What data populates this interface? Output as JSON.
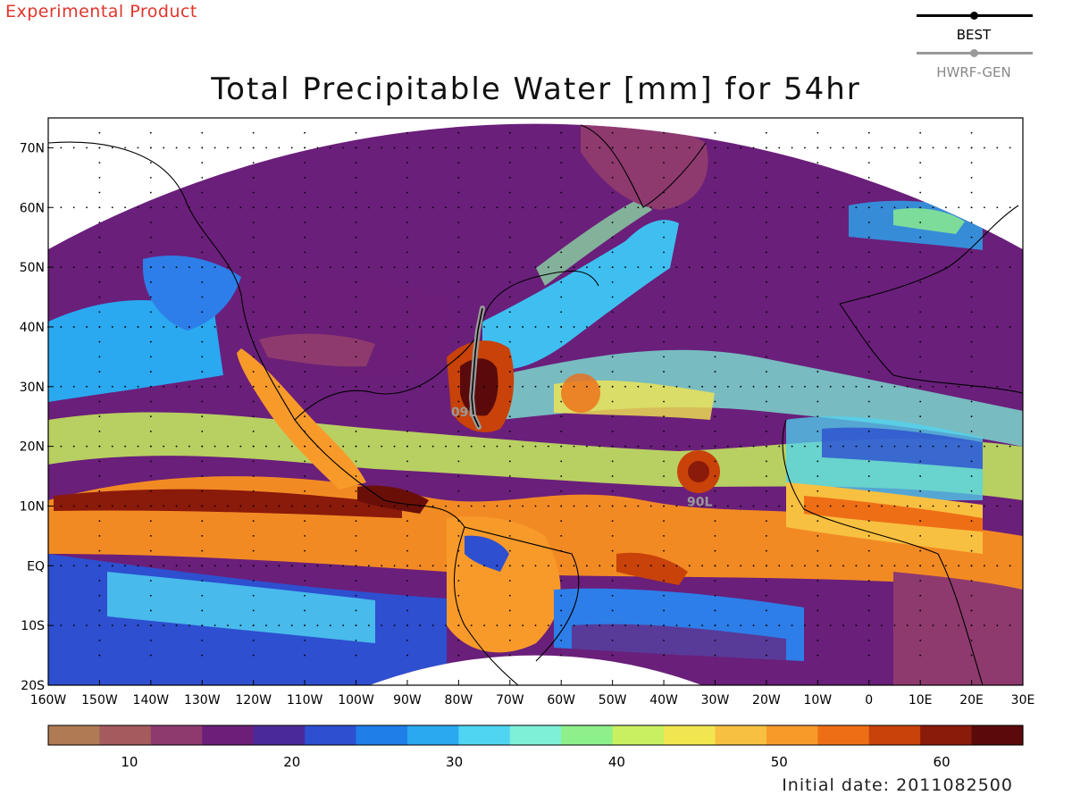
{
  "header": {
    "experimental": "Experimental Product",
    "title": "Total Precipitable Water [mm] for 54hr"
  },
  "legend": {
    "best_label": "BEST",
    "best_color": "#000000",
    "gen_label": "HWRF-GEN",
    "gen_color": "#999999"
  },
  "map": {
    "lon_range": [
      -160,
      30
    ],
    "lat_range": [
      -20,
      75
    ],
    "lon_ticks": [
      "160W",
      "150W",
      "140W",
      "130W",
      "120W",
      "110W",
      "100W",
      "90W",
      "80W",
      "70W",
      "60W",
      "50W",
      "40W",
      "30W",
      "20W",
      "10W",
      "0",
      "10E",
      "20E",
      "30E"
    ],
    "lat_ticks": [
      "20S",
      "10S",
      "EQ",
      "10N",
      "20N",
      "30N",
      "40N",
      "50N",
      "60N",
      "70N"
    ],
    "storm_labels": [
      {
        "text": "09L",
        "lon": -79,
        "lat": 25
      },
      {
        "text": "90L",
        "lon": -33,
        "lat": 10
      }
    ]
  },
  "colorbar": {
    "min": 5,
    "max": 65,
    "ticks": [
      "10",
      "20",
      "30",
      "40",
      "50",
      "60"
    ],
    "colors": [
      "#b07a55",
      "#a55a5e",
      "#8e3a6e",
      "#6b1f78",
      "#4a2a9a",
      "#2d4fd0",
      "#1f7ee8",
      "#2aa8f0",
      "#4fd4f2",
      "#7ef0d8",
      "#8ef08a",
      "#c8f060",
      "#f2e650",
      "#f8c040",
      "#f89a2a",
      "#ee6e16",
      "#c8420a",
      "#8a1a0a",
      "#5a0a0a"
    ]
  },
  "footer": {
    "initial_date": "Initial date: 2011082500"
  }
}
